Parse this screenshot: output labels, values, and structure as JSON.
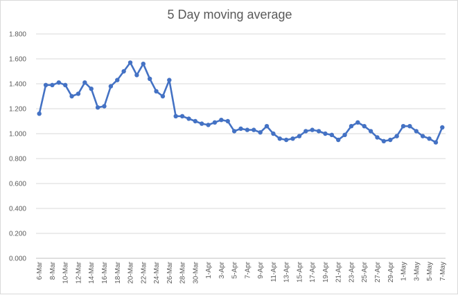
{
  "chart_data": {
    "type": "line",
    "title": "5 Day moving average",
    "xlabel": "",
    "ylabel": "",
    "ylim": [
      0,
      1.8
    ],
    "yticks": [
      "0.000",
      "0.200",
      "0.400",
      "0.600",
      "0.800",
      "1.000",
      "1.200",
      "1.400",
      "1.600",
      "1.800"
    ],
    "grid": "horizontal",
    "legend": "none",
    "color": "#4472c4",
    "x": [
      "6-Mar",
      "7-Mar",
      "8-Mar",
      "9-Mar",
      "10-Mar",
      "11-Mar",
      "12-Mar",
      "13-Mar",
      "14-Mar",
      "15-Mar",
      "16-Mar",
      "17-Mar",
      "18-Mar",
      "19-Mar",
      "20-Mar",
      "21-Mar",
      "22-Mar",
      "23-Mar",
      "24-Mar",
      "25-Mar",
      "26-Mar",
      "27-Mar",
      "28-Mar",
      "29-Mar",
      "30-Mar",
      "31-Mar",
      "1-Apr",
      "2-Apr",
      "3-Apr",
      "4-Apr",
      "5-Apr",
      "6-Apr",
      "7-Apr",
      "8-Apr",
      "9-Apr",
      "10-Apr",
      "11-Apr",
      "12-Apr",
      "13-Apr",
      "14-Apr",
      "15-Apr",
      "16-Apr",
      "17-Apr",
      "18-Apr",
      "19-Apr",
      "20-Apr",
      "21-Apr",
      "22-Apr",
      "23-Apr",
      "24-Apr",
      "25-Apr",
      "26-Apr",
      "27-Apr",
      "28-Apr",
      "29-Apr",
      "30-Apr",
      "1-May",
      "2-May",
      "3-May",
      "4-May",
      "5-May",
      "6-May",
      "7-May"
    ],
    "xticks": [
      "6-Mar",
      "8-Mar",
      "10-Mar",
      "12-Mar",
      "14-Mar",
      "16-Mar",
      "18-Mar",
      "20-Mar",
      "22-Mar",
      "24-Mar",
      "26-Mar",
      "28-Mar",
      "30-Mar",
      "1-Apr",
      "3-Apr",
      "5-Apr",
      "7-Apr",
      "9-Apr",
      "11-Apr",
      "13-Apr",
      "15-Apr",
      "17-Apr",
      "19-Apr",
      "21-Apr",
      "23-Apr",
      "25-Apr",
      "27-Apr",
      "29-Apr",
      "1-May",
      "3-May",
      "5-May",
      "7-May"
    ],
    "series": [
      {
        "name": "",
        "values": [
          1.16,
          1.39,
          1.39,
          1.41,
          1.39,
          1.3,
          1.32,
          1.41,
          1.36,
          1.21,
          1.22,
          1.38,
          1.43,
          1.5,
          1.57,
          1.47,
          1.56,
          1.44,
          1.34,
          1.3,
          1.43,
          1.14,
          1.14,
          1.12,
          1.1,
          1.08,
          1.07,
          1.09,
          1.11,
          1.1,
          1.02,
          1.04,
          1.03,
          1.03,
          1.01,
          1.06,
          1.0,
          0.96,
          0.95,
          0.96,
          0.98,
          1.02,
          1.03,
          1.02,
          1.0,
          0.99,
          0.95,
          0.99,
          1.06,
          1.09,
          1.06,
          1.02,
          0.97,
          0.94,
          0.95,
          0.98,
          1.06,
          1.06,
          1.02,
          0.98,
          0.96,
          0.93,
          1.05
        ]
      }
    ]
  }
}
